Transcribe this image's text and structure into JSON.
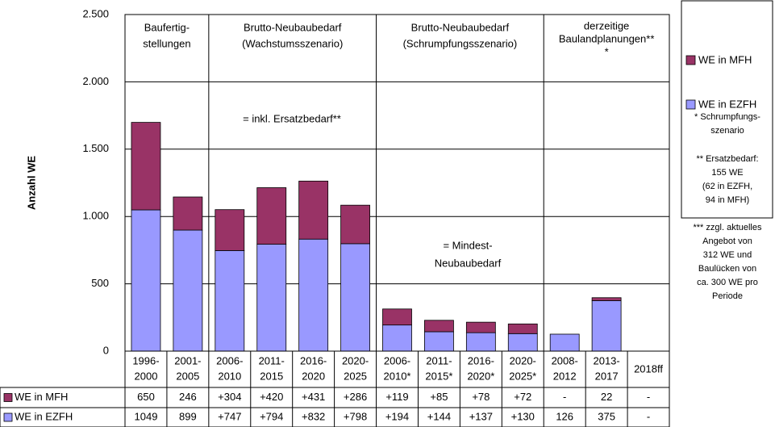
{
  "chart_data": {
    "type": "stacked_bar",
    "y_label": "Anzahl WE",
    "categories": [
      [
        "1996-",
        "2000"
      ],
      [
        "2001-",
        "2005"
      ],
      [
        "2006-",
        "2010"
      ],
      [
        "2011-",
        "2015"
      ],
      [
        "2016-",
        "2020"
      ],
      [
        "2020-",
        "2025"
      ],
      [
        "2006-",
        "2010*"
      ],
      [
        "2011-",
        "2015*"
      ],
      [
        "2016-",
        "2020*"
      ],
      [
        "2020-",
        "2025*"
      ],
      [
        "2008-",
        "2012"
      ],
      [
        "2013-",
        "2017"
      ],
      [
        "2018ff"
      ]
    ],
    "series": [
      {
        "name": "WE in EZFH",
        "color": "#9999ff",
        "values": [
          1049,
          899,
          747,
          794,
          832,
          798,
          194,
          144,
          137,
          130,
          126,
          375,
          null
        ],
        "value_labels": [
          "1049",
          "899",
          "+747",
          "+794",
          "+832",
          "+798",
          "+194",
          "+144",
          "+137",
          "+130",
          "126",
          "375",
          "-"
        ]
      },
      {
        "name": "WE in MFH",
        "color": "#993366",
        "values": [
          650,
          246,
          304,
          420,
          431,
          286,
          119,
          85,
          78,
          72,
          null,
          22,
          null
        ],
        "value_labels": [
          "650",
          "246",
          "+304",
          "+420",
          "+431",
          "+286",
          "+119",
          "+85",
          "+78",
          "+72",
          "-",
          "22",
          "-"
        ]
      }
    ],
    "ylim": [
      0,
      2500
    ],
    "yticks": [
      0,
      500,
      {
        "value": 1000,
        "label": "1.000"
      },
      {
        "value": 1500,
        "label": "1.500"
      },
      {
        "value": 2000,
        "label": "2.000"
      },
      {
        "value": 2500,
        "label": "2.500"
      }
    ],
    "grid": true,
    "sections": [
      {
        "label": [
          "Baufertig-",
          "stellungen"
        ]
      },
      {
        "label": [
          "Brutto-Neubaubedarf",
          "(Wachstumsszenario)"
        ]
      },
      {
        "label": [
          "Brutto-Neubaubedarf",
          "(Schrumpfungsszenario)"
        ]
      },
      {
        "label": [
          "derzeitige",
          "Baulandplanungen**",
          "*"
        ]
      }
    ],
    "annotations": [
      [
        "= inkl. Ersatzbedarf**"
      ],
      [
        "= Mindest-",
        "Neubaubedarf"
      ]
    ],
    "notes": [
      [
        "* Schrumpfungs-",
        "szenario"
      ],
      [
        "** Ersatzbedarf:",
        "155 WE",
        "(62 in EZFH,",
        "94 in MFH)"
      ],
      [
        "*** zzgl. aktuelles",
        "Angebot von",
        "312 WE und",
        "Baulücken von",
        "ca. 300 WE pro",
        "Periode"
      ]
    ]
  }
}
